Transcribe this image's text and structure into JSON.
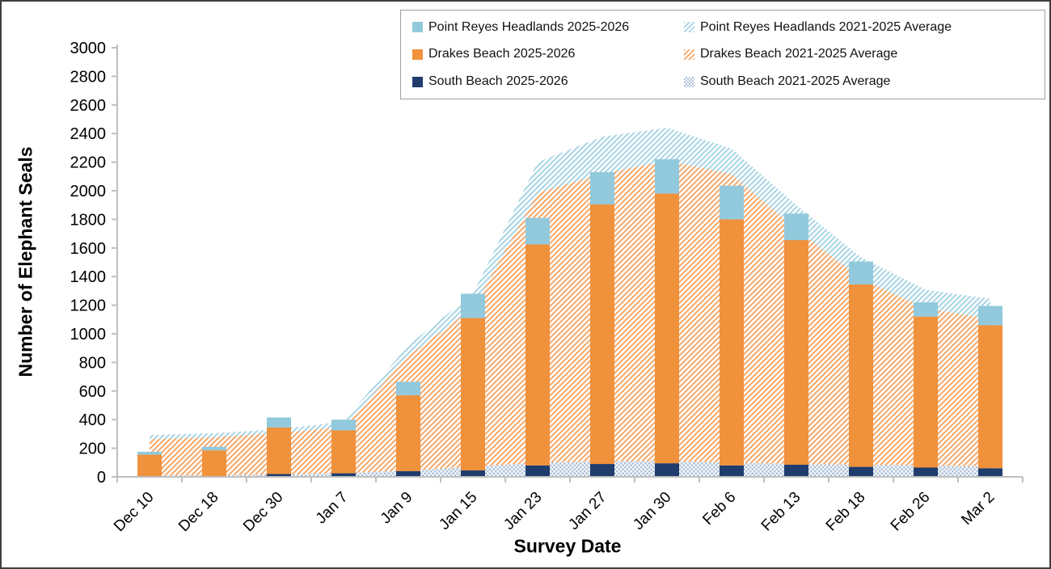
{
  "figure": {
    "border_color": "#3f3f3f",
    "background": "#ffffff",
    "axis_color": "#bfbfbf",
    "text_color": "#000000"
  },
  "chart_data": {
    "type": "bar+area",
    "title": "",
    "xlabel": "Survey Date",
    "ylabel": "Number of Elephant Seals",
    "ylim": [
      0,
      3000
    ],
    "y_tick_step": 200,
    "y_ticks": [
      0,
      200,
      400,
      600,
      800,
      1000,
      1200,
      1400,
      1600,
      1800,
      2000,
      2200,
      2400,
      2600,
      2800,
      3000
    ],
    "grid": false,
    "legend_position": "top-right",
    "categories": [
      "Dec 10",
      "Dec 18",
      "Dec 30",
      "Jan 7",
      "Jan 9",
      "Jan 15",
      "Jan 23",
      "Jan 27",
      "Jan 30",
      "Feb 6",
      "Feb 13",
      "Feb 18",
      "Feb 26",
      "Mar 2"
    ],
    "bar_series": [
      {
        "name": "South Beach 2025-2026",
        "swatch": "sb_solid",
        "values": [
          0,
          0,
          20,
          25,
          40,
          45,
          80,
          90,
          95,
          80,
          85,
          70,
          65,
          60
        ]
      },
      {
        "name": "Drakes Beach 2025-2026",
        "swatch": "db_solid",
        "values": [
          155,
          185,
          325,
          300,
          530,
          1065,
          1545,
          1815,
          1885,
          1720,
          1570,
          1275,
          1055,
          1000
        ]
      },
      {
        "name": "Point Reyes Headlands 2025-2026",
        "swatch": "prh_solid",
        "values": [
          20,
          25,
          70,
          75,
          95,
          170,
          185,
          225,
          240,
          235,
          185,
          160,
          100,
          135
        ]
      }
    ],
    "area_series": [
      {
        "name": "South Beach 2021-2025 Average",
        "swatch": "sb_avg",
        "values": [
          8,
          10,
          15,
          25,
          45,
          70,
          100,
          108,
          110,
          100,
          90,
          85,
          78,
          74
        ]
      },
      {
        "name": "Drakes Beach 2021-2025 Average",
        "swatch": "db_avg",
        "values": [
          255,
          267,
          290,
          325,
          800,
          1110,
          1885,
          2010,
          2100,
          2015,
          1640,
          1300,
          1100,
          1030
        ]
      },
      {
        "name": "Point Reyes Headlands 2021-2025 Average",
        "swatch": "prh_avg",
        "values": [
          30,
          28,
          28,
          36,
          75,
          100,
          215,
          260,
          230,
          180,
          170,
          150,
          130,
          140
        ]
      }
    ],
    "swatches": {
      "prh_solid": {
        "style": "solid",
        "color": "#92c9dc"
      },
      "db_solid": {
        "style": "solid",
        "color": "#f0913c"
      },
      "sb_solid": {
        "style": "solid",
        "color": "#1f3c6d"
      },
      "prh_avg": {
        "style": "diag",
        "color": "#a6d4e4"
      },
      "db_avg": {
        "style": "diag",
        "color": "#f6a768"
      },
      "sb_avg": {
        "style": "checker",
        "color": "#aec2da"
      }
    },
    "legend_items": [
      {
        "label": "Point Reyes Headlands 2025-2026",
        "swatch": "prh_solid"
      },
      {
        "label": "Point Reyes Headlands 2021-2025 Average",
        "swatch": "prh_avg"
      },
      {
        "label": "Drakes Beach 2025-2026",
        "swatch": "db_solid"
      },
      {
        "label": "Drakes Beach 2021-2025 Average",
        "swatch": "db_avg"
      },
      {
        "label": "South Beach 2025-2026",
        "swatch": "sb_solid"
      },
      {
        "label": "South Beach 2021-2025 Average",
        "swatch": "sb_avg"
      }
    ]
  }
}
